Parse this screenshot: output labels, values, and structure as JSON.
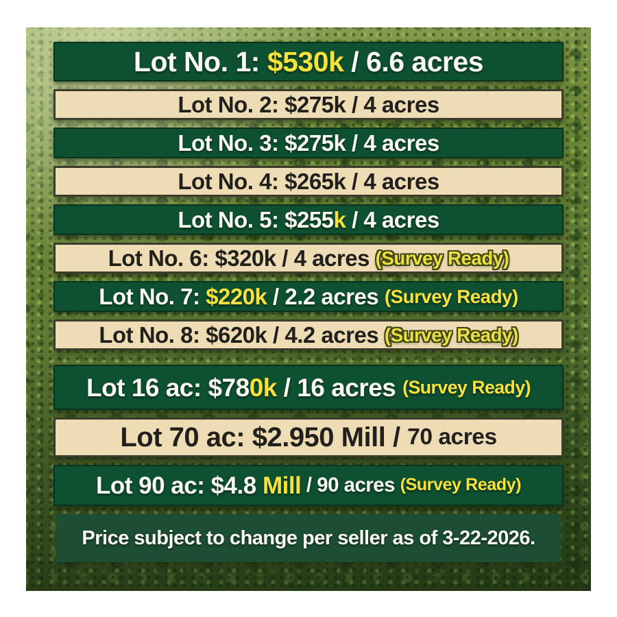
{
  "page": {
    "title": "Land lots price list flyer"
  },
  "colors": {
    "banner_green": "#0e5130",
    "banner_cream": "#eedcb4",
    "text_white": "#fbfbf2",
    "text_dark": "#22201d",
    "accent_yellow": "#f7e13c",
    "outline_green": "#3f4513",
    "footer_band": "#1d4e33",
    "frame": "#ffffff"
  },
  "rows": [
    {
      "id": "1",
      "style": "green",
      "size": "lg1",
      "lot": "Lot No. 1",
      "price": "$530k",
      "acreage": "6.6 acres",
      "survey_ready": false,
      "segments": [
        {
          "text": "Lot No. 1: ",
          "color": "white"
        },
        {
          "text": "$530k",
          "color": "yellow"
        },
        {
          "text": " / 6.6 acres",
          "color": "white"
        }
      ]
    },
    {
      "id": "2",
      "style": "cream",
      "size": "md",
      "lot": "Lot No. 2",
      "price": "$275k",
      "acreage": "4 acres",
      "survey_ready": false,
      "segments": [
        {
          "text": "Lot No. 2: $275k / 4 acres",
          "color": "dark"
        }
      ]
    },
    {
      "id": "3",
      "style": "green",
      "size": "md",
      "lot": "Lot No. 3",
      "price": "$275k",
      "acreage": "4 acres",
      "survey_ready": false,
      "segments": [
        {
          "text": "Lot No. 3: $275k / 4 acres",
          "color": "white"
        }
      ]
    },
    {
      "id": "4",
      "style": "cream",
      "size": "md",
      "lot": "Lot No. 4",
      "price": "$265k",
      "acreage": "4 acres",
      "survey_ready": false,
      "segments": [
        {
          "text": "Lot No. 4: $265k / 4 acres",
          "color": "dark"
        }
      ]
    },
    {
      "id": "5",
      "style": "green",
      "size": "md",
      "lot": "Lot No. 5",
      "price": "$255k",
      "acreage": "4 acres",
      "survey_ready": false,
      "segments": [
        {
          "text": "Lot No. 5: $255",
          "color": "white"
        },
        {
          "text": "k",
          "color": "yellow"
        },
        {
          "text": " / 4 acres",
          "color": "white"
        }
      ]
    },
    {
      "id": "6",
      "style": "cream",
      "size": "md",
      "lot": "Lot No. 6",
      "price": "$320k",
      "acreage": "4 acres",
      "survey_ready": true,
      "segments": [
        {
          "text": "Lot No. 6: $320k / 4 acres ",
          "color": "dark"
        },
        {
          "text": "(Survey Ready)",
          "color": "yellowOutline",
          "size": "sm"
        }
      ]
    },
    {
      "id": "7",
      "style": "green",
      "size": "md",
      "lot": "Lot No. 7",
      "price": "$220k",
      "acreage": "2.2 acres",
      "survey_ready": true,
      "segments": [
        {
          "text": "Lot No. 7: ",
          "color": "white"
        },
        {
          "text": "$220k",
          "color": "yellow"
        },
        {
          "text": " / 2.2 acres ",
          "color": "white"
        },
        {
          "text": "(Survey Ready)",
          "color": "yellow",
          "size": "sm"
        }
      ]
    },
    {
      "id": "8",
      "style": "cream",
      "size": "md",
      "lot": "Lot No. 8",
      "price": "$620k",
      "acreage": "4.2 acres",
      "survey_ready": true,
      "segments": [
        {
          "text": "Lot No. 8: $620k / 4.2 acres ",
          "color": "dark"
        },
        {
          "text": "(Survey Ready)",
          "color": "yellowOutline",
          "size": "sm"
        }
      ]
    },
    {
      "id": "16ac",
      "style": "green",
      "size": "lg2",
      "lot": "Lot 16 ac",
      "price": "$780k",
      "acreage": "16 acres",
      "survey_ready": true,
      "segments": [
        {
          "text": "Lot 16 ac: $78",
          "color": "white"
        },
        {
          "text": "0k",
          "color": "yellow"
        },
        {
          "text": " / 16 acres ",
          "color": "white"
        },
        {
          "text": "(Survey Ready)",
          "color": "yellow",
          "size": "xs"
        }
      ]
    },
    {
      "id": "70ac",
      "style": "cream",
      "size": "lg3",
      "lot": "Lot 70 ac",
      "price": "$2.950 Mill",
      "acreage": "70 acres",
      "survey_ready": false,
      "segments": [
        {
          "text": "Lot 70 ac: $2.950 Mill / ",
          "color": "dark"
        },
        {
          "text": "70 acres",
          "color": "dark",
          "size": "sm"
        }
      ]
    },
    {
      "id": "90ac",
      "style": "green",
      "size": "lg4",
      "lot": "Lot 90 ac",
      "price": "$4.8 Mill",
      "acreage": "90 acres",
      "survey_ready": true,
      "segments": [
        {
          "text": "Lot 90 ac: $4.8 ",
          "color": "white"
        },
        {
          "text": "Mill",
          "color": "yellow"
        },
        {
          "text": " / 90 acres ",
          "color": "white",
          "size": "sm"
        },
        {
          "text": "(Survey Ready)",
          "color": "yellow",
          "size": "xs"
        }
      ]
    }
  ],
  "footer": {
    "text": "Price subject to change per seller as of 3-22-2026."
  }
}
